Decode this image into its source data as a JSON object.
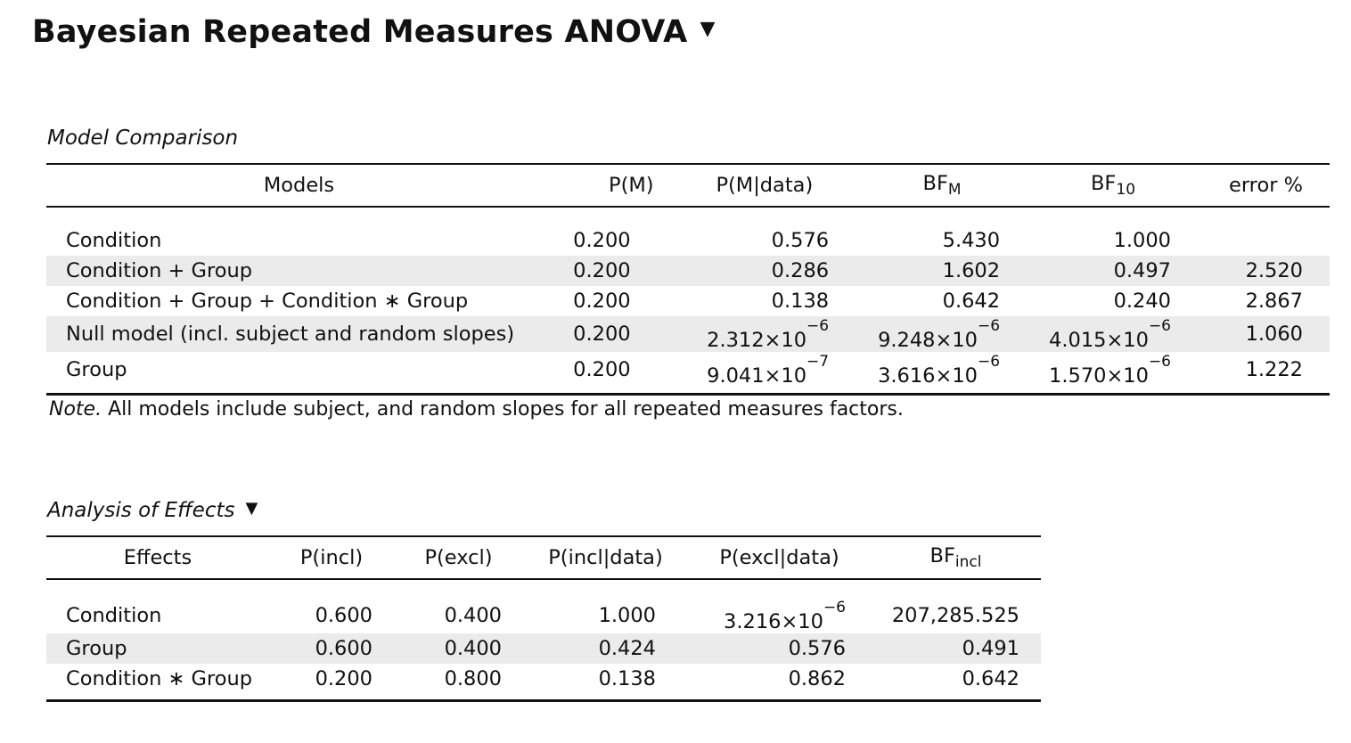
{
  "analysis": {
    "title": "Bayesian Repeated Measures ANOVA",
    "menu_caret": "▼"
  },
  "model_comparison": {
    "title": "Model Comparison",
    "columns": {
      "models": "Models",
      "pm": "P(M)",
      "pm_data": "P(M|data)",
      "bfm_base": "BF",
      "bfm_sub": "M",
      "bf10_base": "BF",
      "bf10_sub": "10",
      "error": "error %"
    },
    "rows": [
      {
        "model": "Condition",
        "pm": "0.200",
        "pm_data": "0.576",
        "bfm": "5.430",
        "bf10": "1.000",
        "error": ""
      },
      {
        "model": "Condition + Group",
        "pm": "0.200",
        "pm_data": "0.286",
        "bfm": "1.602",
        "bf10": "0.497",
        "error": "2.520"
      },
      {
        "model": "Condition + Group + Condition ∗ Group",
        "pm": "0.200",
        "pm_data": "0.138",
        "bfm": "0.642",
        "bf10": "0.240",
        "error": "2.867"
      },
      {
        "model": "Null model (incl. subject and random slopes)",
        "pm": "0.200",
        "pm_data_mant": "2.312×10",
        "pm_data_exp": "−6",
        "bfm_mant": "9.248×10",
        "bfm_exp": "−6",
        "bf10_mant": "4.015×10",
        "bf10_exp": "−6",
        "error": "1.060"
      },
      {
        "model": "Group",
        "pm": "0.200",
        "pm_data_mant": "9.041×10",
        "pm_data_exp": "−7",
        "bfm_mant": "3.616×10",
        "bfm_exp": "−6",
        "bf10_mant": "1.570×10",
        "bf10_exp": "−6",
        "error": "1.222"
      }
    ],
    "note_label": "Note.",
    "note_text": " All models include subject, and random slopes for all repeated measures factors."
  },
  "effects": {
    "title": "Analysis of Effects",
    "menu_caret": "▼",
    "columns": {
      "effects": "Effects",
      "p_incl": "P(incl)",
      "p_excl": "P(excl)",
      "p_incl_data": "P(incl|data)",
      "p_excl_data": "P(excl|data)",
      "bf_incl_base": "BF",
      "bf_incl_sub": "incl"
    },
    "rows": [
      {
        "effect": "Condition",
        "p_incl": "0.600",
        "p_excl": "0.400",
        "p_incl_data": "1.000",
        "p_excl_data_mant": "3.216×10",
        "p_excl_data_exp": "−6",
        "bf_incl": "207,285.525"
      },
      {
        "effect": "Group",
        "p_incl": "0.600",
        "p_excl": "0.400",
        "p_incl_data": "0.424",
        "p_excl_data": "0.576",
        "bf_incl": "0.491"
      },
      {
        "effect": "Condition ∗ Group",
        "p_incl": "0.200",
        "p_excl": "0.800",
        "p_incl_data": "0.138",
        "p_excl_data": "0.862",
        "bf_incl": "0.642"
      }
    ]
  }
}
